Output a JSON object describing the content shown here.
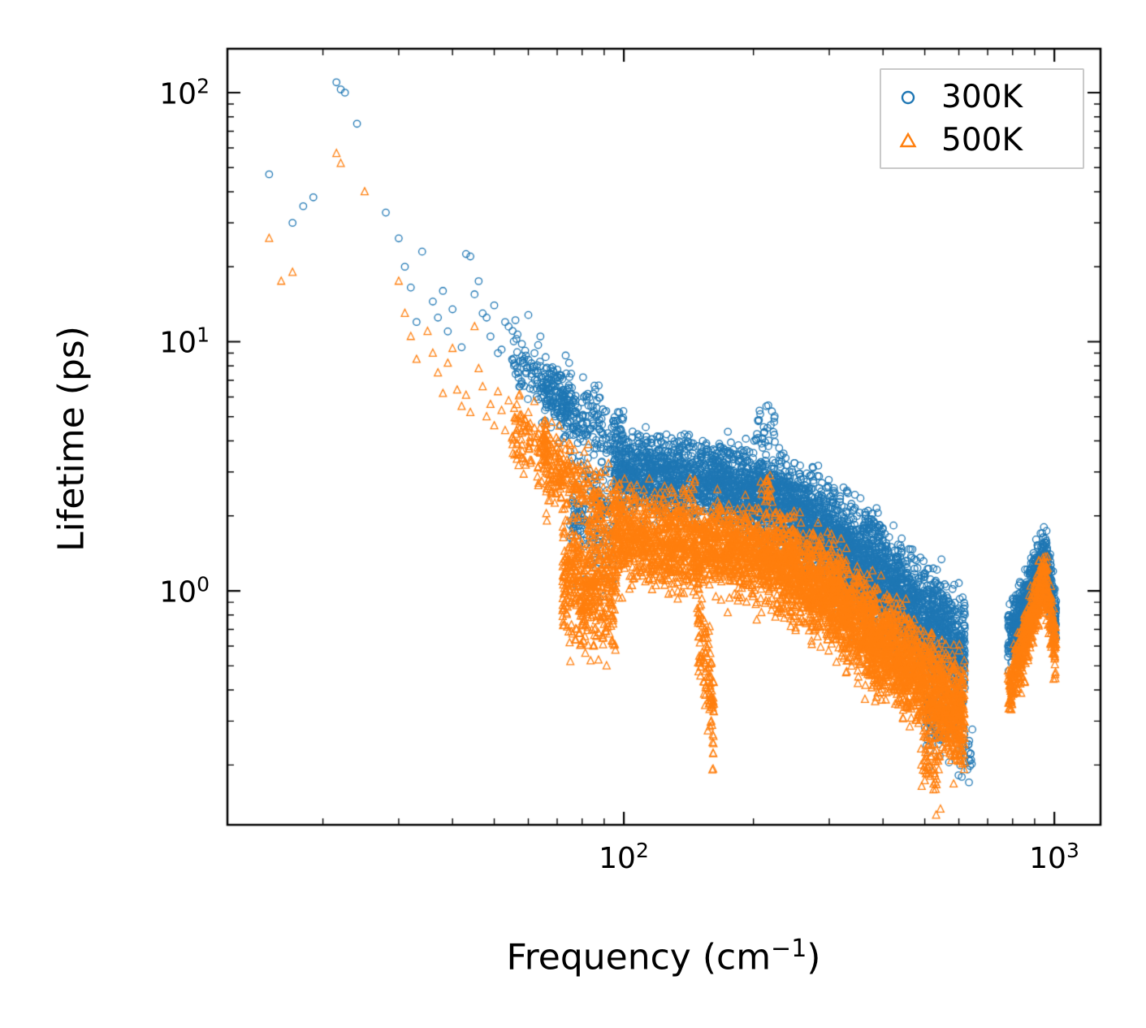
{
  "figure": {
    "background": "#ffffff",
    "frame_color": "#000000"
  },
  "chart_data": {
    "type": "scatter",
    "title": "",
    "xlabel": "Frequency (cm⁻¹)",
    "ylabel": "Lifetime (ps)",
    "xlabel_parts": {
      "pre": "Frequency (cm",
      "sup": "−1",
      "post": ")"
    },
    "xscale": "log",
    "yscale": "log",
    "xlim": [
      12,
      1280
    ],
    "ylim": [
      0.115,
      150
    ],
    "grid": false,
    "legend_position": "upper right",
    "xticks": [
      {
        "base": "10",
        "exp": "2",
        "value": 100
      },
      {
        "base": "10",
        "exp": "3",
        "value": 1000
      }
    ],
    "yticks": [
      {
        "base": "10",
        "exp": "2",
        "value": 100
      },
      {
        "base": "10",
        "exp": "1",
        "value": 10
      },
      {
        "base": "10",
        "exp": "0",
        "value": 1
      }
    ],
    "xminor_ticks": [
      20,
      30,
      40,
      50,
      60,
      70,
      80,
      90,
      200,
      300,
      400,
      500,
      600,
      700,
      800,
      900
    ],
    "yminor_ticks": [
      0.2,
      0.3,
      0.4,
      0.5,
      0.6,
      0.7,
      0.8,
      0.9,
      2,
      3,
      4,
      5,
      6,
      7,
      8,
      9,
      20,
      30,
      40,
      50,
      60,
      70,
      80,
      90
    ],
    "series": [
      {
        "name": "300K",
        "color": "#1f77b4",
        "marker": "circle",
        "points": [
          [
            15,
            47
          ],
          [
            17,
            30
          ],
          [
            18,
            35
          ],
          [
            19,
            38
          ],
          [
            21.5,
            110
          ],
          [
            22,
            103
          ],
          [
            22.5,
            100
          ],
          [
            24,
            75
          ],
          [
            28,
            33
          ],
          [
            30,
            26
          ],
          [
            31,
            20
          ],
          [
            32,
            16.5
          ],
          [
            33,
            12
          ],
          [
            34,
            23
          ],
          [
            36,
            14.5
          ],
          [
            37,
            12.5
          ],
          [
            38,
            16
          ],
          [
            39,
            11
          ],
          [
            40,
            13.5
          ],
          [
            42,
            9.5
          ],
          [
            43,
            22.5
          ],
          [
            44,
            22
          ],
          [
            45,
            15.5
          ],
          [
            46,
            17.5
          ],
          [
            47,
            13
          ],
          [
            48,
            12.5
          ],
          [
            49,
            10.5
          ],
          [
            50,
            14
          ],
          [
            51,
            9
          ],
          [
            52,
            9.3
          ],
          [
            53,
            12
          ],
          [
            54,
            11.5
          ],
          [
            55,
            8.5
          ],
          [
            56,
            12.2
          ],
          [
            57,
            7.5
          ],
          [
            58,
            6.8
          ],
          [
            59,
            9.2
          ],
          [
            60,
            12.8
          ],
          [
            61,
            8.2
          ],
          [
            62,
            9.0
          ],
          [
            63,
            7.0
          ],
          [
            64,
            10.5
          ],
          [
            65,
            6.5
          ]
        ],
        "clusters": [
          {
            "x1": 55,
            "x2": 75,
            "y1": 8.5,
            "y2": 5.5,
            "n": 130,
            "spread": 0.1
          },
          {
            "x1": 65,
            "x2": 100,
            "y1": 6.5,
            "y2": 3.8,
            "n": 260,
            "spread": 0.12
          },
          {
            "x1": 75,
            "x2": 95,
            "y1": 2.1,
            "y2": 1.9,
            "n": 160,
            "spread": 0.2
          },
          {
            "x1": 95,
            "x2": 160,
            "y1": 3.1,
            "y2": 2.7,
            "n": 900,
            "spread": 0.13
          },
          {
            "x1": 160,
            "x2": 220,
            "y1": 2.7,
            "y2": 2.4,
            "n": 700,
            "spread": 0.14
          },
          {
            "x1": 200,
            "x2": 225,
            "y1": 4.3,
            "y2": 4.8,
            "n": 24,
            "spread": 0.07
          },
          {
            "x1": 220,
            "x2": 310,
            "y1": 2.4,
            "y2": 1.6,
            "n": 900,
            "spread": 0.15
          },
          {
            "x1": 310,
            "x2": 430,
            "y1": 1.5,
            "y2": 0.95,
            "n": 900,
            "spread": 0.17
          },
          {
            "x1": 360,
            "x2": 400,
            "y1": 1.75,
            "y2": 1.55,
            "n": 80,
            "spread": 0.09
          },
          {
            "x1": 430,
            "x2": 620,
            "y1": 0.95,
            "y2": 0.55,
            "n": 1000,
            "spread": 0.18
          },
          {
            "x1": 500,
            "x2": 560,
            "y1": 0.34,
            "y2": 0.27,
            "n": 60,
            "spread": 0.14
          },
          {
            "x1": 560,
            "x2": 645,
            "y1": 0.3,
            "y2": 0.21,
            "n": 45,
            "spread": 0.12
          },
          {
            "x1": 780,
            "x2": 950,
            "y1": 0.62,
            "y2": 1.35,
            "n": 460,
            "spread": 0.1
          },
          {
            "x1": 950,
            "x2": 1010,
            "y1": 1.35,
            "y2": 0.8,
            "n": 150,
            "spread": 0.1
          }
        ]
      },
      {
        "name": "500K",
        "color": "#ff7f0e",
        "marker": "triangle",
        "points": [
          [
            15,
            26
          ],
          [
            16,
            17.5
          ],
          [
            17,
            19
          ],
          [
            21.5,
            57
          ],
          [
            22,
            52
          ],
          [
            25,
            40
          ],
          [
            30,
            17.5
          ],
          [
            31,
            13
          ],
          [
            32,
            10.5
          ],
          [
            33,
            8.5
          ],
          [
            35,
            11
          ],
          [
            36,
            9
          ],
          [
            37,
            7.5
          ],
          [
            38,
            6.2
          ],
          [
            39,
            8.2
          ],
          [
            40,
            9.4
          ],
          [
            41,
            6.4
          ],
          [
            42,
            5.5
          ],
          [
            43,
            6.1
          ],
          [
            44,
            5.2
          ],
          [
            45,
            11.5
          ],
          [
            46,
            7.8
          ],
          [
            47,
            6.6
          ],
          [
            48,
            5.0
          ],
          [
            49,
            5.6
          ],
          [
            50,
            4.6
          ],
          [
            51,
            6.3
          ],
          [
            52,
            5.3
          ],
          [
            53,
            4.4
          ],
          [
            54,
            5.8
          ],
          [
            55,
            4.1
          ],
          [
            56,
            4.8
          ],
          [
            57,
            3.6
          ],
          [
            58,
            4.3
          ],
          [
            59,
            3.3
          ],
          [
            60,
            5.2
          ],
          [
            62,
            4.5
          ],
          [
            64,
            3.8
          ]
        ],
        "clusters": [
          {
            "x1": 55,
            "x2": 75,
            "y1": 4.5,
            "y2": 2.8,
            "n": 150,
            "spread": 0.12
          },
          {
            "x1": 65,
            "x2": 100,
            "y1": 3.4,
            "y2": 1.9,
            "n": 260,
            "spread": 0.14
          },
          {
            "x1": 72,
            "x2": 96,
            "y1": 1.2,
            "y2": 1.0,
            "n": 500,
            "spread": 0.22
          },
          {
            "x1": 95,
            "x2": 150,
            "y1": 1.7,
            "y2": 1.55,
            "n": 800,
            "spread": 0.16
          },
          {
            "x1": 148,
            "x2": 162,
            "y1": 0.85,
            "y2": 0.3,
            "n": 120,
            "spread": 0.18
          },
          {
            "x1": 150,
            "x2": 220,
            "y1": 1.55,
            "y2": 1.35,
            "n": 700,
            "spread": 0.15
          },
          {
            "x1": 205,
            "x2": 220,
            "y1": 2.3,
            "y2": 2.6,
            "n": 20,
            "spread": 0.07
          },
          {
            "x1": 220,
            "x2": 310,
            "y1": 1.35,
            "y2": 0.95,
            "n": 900,
            "spread": 0.16
          },
          {
            "x1": 310,
            "x2": 430,
            "y1": 0.9,
            "y2": 0.55,
            "n": 900,
            "spread": 0.18
          },
          {
            "x1": 430,
            "x2": 620,
            "y1": 0.55,
            "y2": 0.3,
            "n": 1000,
            "spread": 0.18
          },
          {
            "x1": 490,
            "x2": 545,
            "y1": 0.22,
            "y2": 0.18,
            "n": 50,
            "spread": 0.12
          },
          {
            "x1": 780,
            "x2": 950,
            "y1": 0.38,
            "y2": 1.15,
            "n": 420,
            "spread": 0.1
          },
          {
            "x1": 950,
            "x2": 1010,
            "y1": 1.15,
            "y2": 0.55,
            "n": 140,
            "spread": 0.1
          }
        ]
      }
    ]
  }
}
